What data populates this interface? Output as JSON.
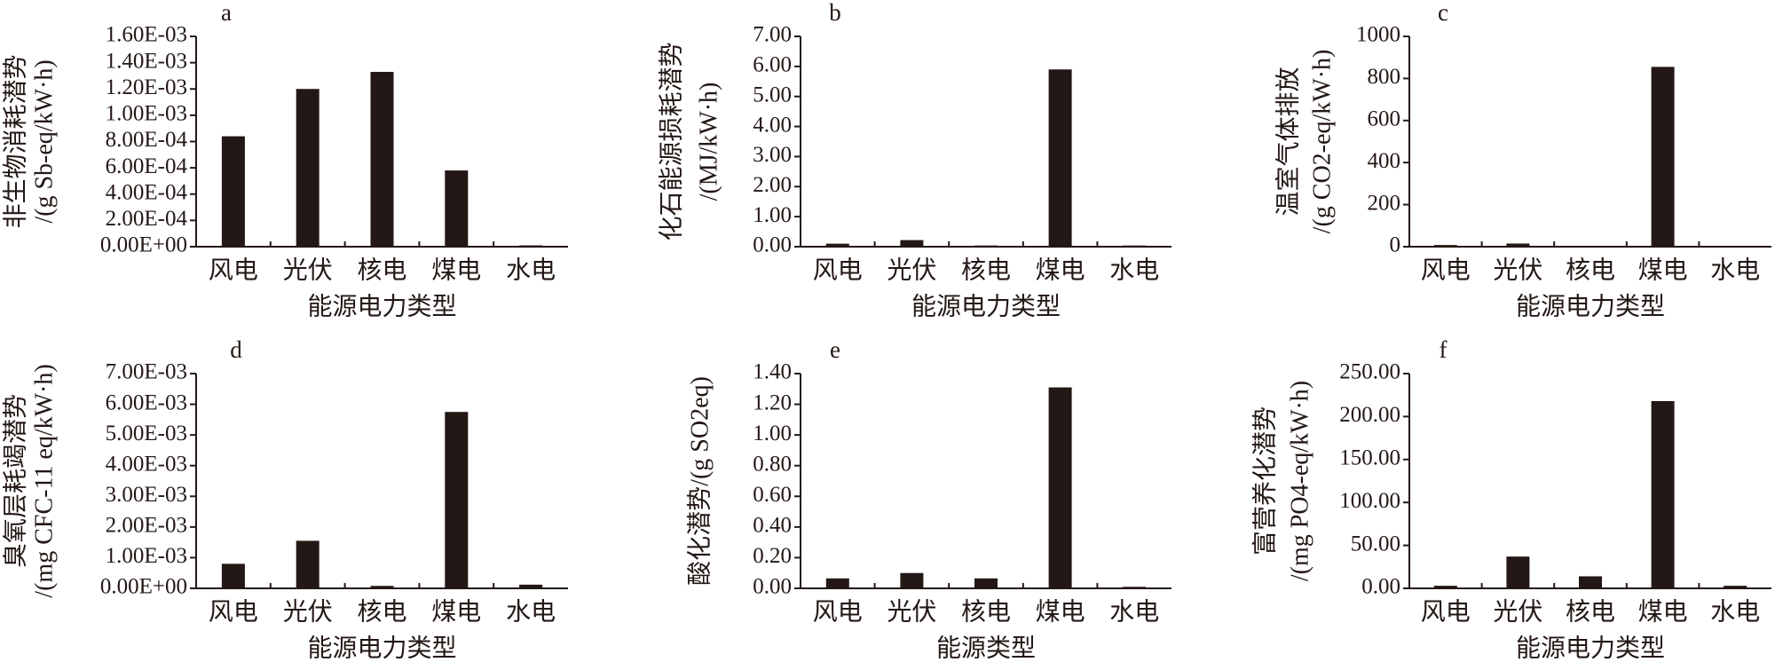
{
  "chart_data": [
    {
      "type": "bar",
      "title": "a",
      "y_label": [
        "非生物消耗潜势",
        "/(g Sb-eq/kW·h)"
      ],
      "x_label": "能源电力类型",
      "categories": [
        "风电",
        "光伏",
        "核电",
        "煤电",
        "水电"
      ],
      "values": [
        0.00084,
        0.0012,
        0.00133,
        0.00058,
        1e-05
      ],
      "color": "#231815",
      "ylim": [
        0,
        0.0016
      ],
      "yticks": [
        {
          "value": 0,
          "label": "0.00E+00"
        },
        {
          "value": 0.0002,
          "label": "2.00E-04"
        },
        {
          "value": 0.0004,
          "label": "4.00E-04"
        },
        {
          "value": 0.0006,
          "label": "6.00E-04"
        },
        {
          "value": 0.0008,
          "label": "8.00E-04"
        },
        {
          "value": 0.001,
          "label": "1.00E-03"
        },
        {
          "value": 0.0012,
          "label": "1.20E-03"
        },
        {
          "value": 0.0014,
          "label": "1.40E-03"
        },
        {
          "value": 0.0016,
          "label": "1.60E-03"
        }
      ]
    },
    {
      "type": "bar",
      "title": "b",
      "y_label": [
        "化石能源损耗潜势",
        "/(MJ/kW·h)"
      ],
      "x_label": "能源电力类型",
      "categories": [
        "风电",
        "光伏",
        "核电",
        "煤电",
        "水电"
      ],
      "values": [
        0.1,
        0.22,
        0.04,
        5.9,
        0.04
      ],
      "color": "#231815",
      "ylim": [
        0,
        7
      ],
      "yticks": [
        {
          "value": 0,
          "label": "0.00"
        },
        {
          "value": 1,
          "label": "1.00"
        },
        {
          "value": 2,
          "label": "2.00"
        },
        {
          "value": 3,
          "label": "3.00"
        },
        {
          "value": 4,
          "label": "4.00"
        },
        {
          "value": 5,
          "label": "5.00"
        },
        {
          "value": 6,
          "label": "6.00"
        },
        {
          "value": 7,
          "label": "7.00"
        }
      ]
    },
    {
      "type": "bar",
      "title": "c",
      "y_label": [
        "温室气体排放",
        "/(g CO2-eq/kW·h)"
      ],
      "x_label": "能源电力类型",
      "categories": [
        "风电",
        "光伏",
        "核电",
        "煤电",
        "水电"
      ],
      "values": [
        8,
        15,
        1,
        855,
        1
      ],
      "color": "#231815",
      "ylim": [
        0,
        1000
      ],
      "yticks": [
        0,
        200,
        400,
        600,
        800,
        1000
      ]
    },
    {
      "type": "bar",
      "title": "d",
      "y_label": [
        "臭氧层耗竭潜势",
        "/(mg CFC-11 eq/kW·h)"
      ],
      "x_label": "能源电力类型",
      "categories": [
        "风电",
        "光伏",
        "核电",
        "煤电",
        "水电"
      ],
      "values": [
        0.0008,
        0.00155,
        8e-05,
        0.00575,
        0.00012
      ],
      "color": "#231815",
      "ylim": [
        0,
        0.007
      ],
      "yticks": [
        {
          "value": 0,
          "label": "0.00E+00"
        },
        {
          "value": 0.001,
          "label": "1.00E-03"
        },
        {
          "value": 0.002,
          "label": "2.00E-03"
        },
        {
          "value": 0.003,
          "label": "3.00E-03"
        },
        {
          "value": 0.004,
          "label": "4.00E-03"
        },
        {
          "value": 0.005,
          "label": "5.00E-03"
        },
        {
          "value": 0.006,
          "label": "6.00E-03"
        },
        {
          "value": 0.007,
          "label": "7.00E-03"
        }
      ]
    },
    {
      "type": "bar",
      "title": "e",
      "y_label": [
        "酸化潜势/(g SO2eq)"
      ],
      "x_label": "能源类型",
      "categories": [
        "风电",
        "光伏",
        "核电",
        "煤电",
        "水电"
      ],
      "values": [
        0.065,
        0.1,
        0.065,
        1.31,
        0.01
      ],
      "color": "#231815",
      "ylim": [
        0,
        1.4
      ],
      "yticks": [
        {
          "value": 0,
          "label": "0.00"
        },
        {
          "value": 0.2,
          "label": "0.20"
        },
        {
          "value": 0.4,
          "label": "0.40"
        },
        {
          "value": 0.6,
          "label": "0.60"
        },
        {
          "value": 0.8,
          "label": "0.80"
        },
        {
          "value": 1,
          "label": "1.00"
        },
        {
          "value": 1.2,
          "label": "1.20"
        },
        {
          "value": 1.4,
          "label": "1.40"
        }
      ]
    },
    {
      "type": "bar",
      "title": "f",
      "y_label": [
        "富营养化潜势",
        "/(mg PO4-eq/kW·h)"
      ],
      "x_label": "能源电力类型",
      "categories": [
        "风电",
        "光伏",
        "核电",
        "煤电",
        "水电"
      ],
      "values": [
        3,
        37,
        14,
        218,
        3
      ],
      "color": "#231815",
      "ylim": [
        0,
        250
      ],
      "yticks": [
        {
          "value": 0,
          "label": "0.00"
        },
        {
          "value": 50,
          "label": "50.00"
        },
        {
          "value": 100,
          "label": "100.00"
        },
        {
          "value": 150,
          "label": "150.00"
        },
        {
          "value": 200,
          "label": "200.00"
        },
        {
          "value": 250,
          "label": "250.00"
        }
      ]
    }
  ]
}
